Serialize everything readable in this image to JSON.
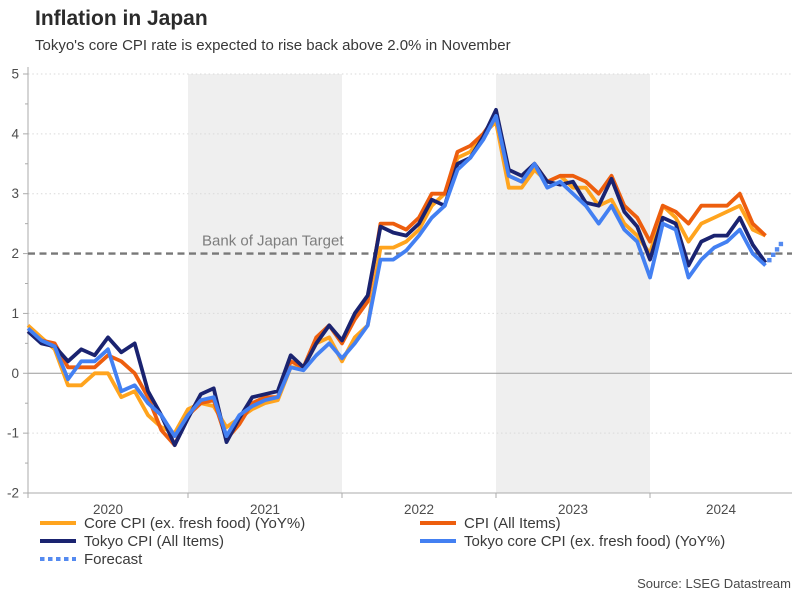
{
  "header": {
    "title": "Inflation in Japan",
    "subtitle": "Tokyo's core CPI rate is expected to rise back above 2.0% in November"
  },
  "source": "Source: LSEG Datastream",
  "target_label": "Bank of Japan Target",
  "chart_data": {
    "type": "line",
    "x_unit": "month",
    "start": "2020-01",
    "end": "2024-10",
    "year_labels": [
      "2020",
      "2021",
      "2022",
      "2023",
      "2024"
    ],
    "shaded_years": [
      "2021",
      "2023"
    ],
    "ylim": [
      -2,
      5
    ],
    "yticks": [
      -2,
      -1,
      0,
      1,
      2,
      3,
      4,
      5
    ],
    "target_value": 2.0,
    "grid": "dotted-horizontal",
    "legend_position": "bottom",
    "colors": {
      "band": "#EFEFEF",
      "grid": "#D9D9D9",
      "zero_line": "#9A9A9A",
      "axis": "#ABABAB",
      "tick_label": "#4D4D4D",
      "target_line": "#787878",
      "target_label": "#7D7D7D"
    },
    "series": [
      {
        "name": "Core CPI (ex. fresh food) (YoY%)",
        "color": "#FFA41E",
        "values": [
          0.8,
          0.6,
          0.4,
          -0.2,
          -0.2,
          0.0,
          0.0,
          -0.4,
          -0.3,
          -0.7,
          -0.9,
          -1.0,
          -0.6,
          -0.5,
          -0.55,
          -0.9,
          -0.75,
          -0.6,
          -0.5,
          -0.45,
          0.1,
          0.1,
          0.5,
          0.6,
          0.2,
          0.6,
          0.8,
          2.1,
          2.1,
          2.2,
          2.4,
          2.8,
          3.0,
          3.6,
          3.7,
          4.0,
          4.2,
          3.1,
          3.1,
          3.4,
          3.2,
          3.3,
          3.1,
          3.1,
          2.8,
          2.9,
          2.5,
          2.3,
          2.0,
          2.8,
          2.6,
          2.2,
          2.5,
          2.6,
          2.7,
          2.8,
          2.4,
          2.3
        ]
      },
      {
        "name": "CPI (All Items)",
        "color": "#ED5E0E",
        "values": [
          0.7,
          0.55,
          0.5,
          0.1,
          0.1,
          0.1,
          0.3,
          0.2,
          0.0,
          -0.4,
          -0.95,
          -1.2,
          -0.7,
          -0.5,
          -0.45,
          -1.1,
          -0.85,
          -0.5,
          -0.4,
          -0.4,
          0.2,
          0.1,
          0.6,
          0.8,
          0.5,
          0.9,
          1.2,
          2.5,
          2.5,
          2.4,
          2.6,
          3.0,
          3.0,
          3.7,
          3.8,
          4.0,
          4.3,
          3.3,
          3.2,
          3.5,
          3.2,
          3.3,
          3.3,
          3.2,
          3.0,
          3.3,
          2.8,
          2.6,
          2.2,
          2.8,
          2.7,
          2.5,
          2.8,
          2.8,
          2.8,
          3.0,
          2.5,
          2.3
        ]
      },
      {
        "name": "Tokyo CPI (All Items)",
        "color": "#1A2370",
        "values": [
          0.7,
          0.5,
          0.45,
          0.2,
          0.4,
          0.3,
          0.6,
          0.35,
          0.5,
          -0.3,
          -0.7,
          -1.2,
          -0.75,
          -0.35,
          -0.25,
          -1.15,
          -0.75,
          -0.4,
          -0.35,
          -0.3,
          0.3,
          0.1,
          0.5,
          0.8,
          0.55,
          1.0,
          1.3,
          2.45,
          2.35,
          2.3,
          2.5,
          2.9,
          2.8,
          3.5,
          3.6,
          3.95,
          4.4,
          3.4,
          3.3,
          3.5,
          3.2,
          3.15,
          3.2,
          2.85,
          2.8,
          3.25,
          2.7,
          2.45,
          1.9,
          2.6,
          2.5,
          1.8,
          2.2,
          2.3,
          2.3,
          2.6,
          2.15,
          1.85
        ]
      },
      {
        "name": "Tokyo core CPI (ex. fresh food) (YoY%)",
        "color": "#4380F2",
        "values": [
          0.75,
          0.55,
          0.45,
          -0.1,
          0.2,
          0.2,
          0.4,
          -0.3,
          -0.2,
          -0.5,
          -0.7,
          -1.05,
          -0.7,
          -0.45,
          -0.4,
          -1.05,
          -0.7,
          -0.55,
          -0.45,
          -0.4,
          0.1,
          0.05,
          0.3,
          0.5,
          0.25,
          0.5,
          0.8,
          1.9,
          1.9,
          2.05,
          2.3,
          2.6,
          2.8,
          3.4,
          3.6,
          3.9,
          4.3,
          3.3,
          3.2,
          3.5,
          3.1,
          3.2,
          3.0,
          2.8,
          2.5,
          2.8,
          2.4,
          2.2,
          1.6,
          2.5,
          2.4,
          1.6,
          1.9,
          2.1,
          2.2,
          2.4,
          2.0,
          1.8
        ]
      }
    ],
    "forecast": {
      "name": "Forecast",
      "color": "#548AF0",
      "from": {
        "month": "2024-10",
        "value": 1.8
      },
      "to": {
        "month": "2024-11",
        "value": 2.1
      }
    }
  }
}
